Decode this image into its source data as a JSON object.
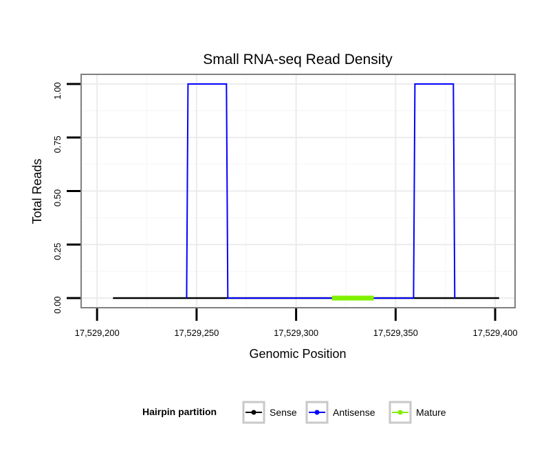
{
  "chart_data": {
    "type": "line",
    "title": "Small RNA-seq Read Density",
    "xlabel": "Genomic Position",
    "ylabel": "Total Reads",
    "xlim": [
      17529192,
      17529410
    ],
    "ylim": [
      -0.045,
      1.045
    ],
    "x_ticks": [
      17529200,
      17529250,
      17529300,
      17529350,
      17529400
    ],
    "x_tick_labels": [
      "17,529,200",
      "17,529,250",
      "17,529,300",
      "17,529,350",
      "17,529,400"
    ],
    "y_ticks": [
      0,
      0.25,
      0.5,
      0.75,
      1.0
    ],
    "y_tick_labels": [
      "0.00",
      "0.25",
      "0.50",
      "0.75",
      "1.00"
    ],
    "grid": true,
    "legend": {
      "title": "Hairpin partition",
      "position": "bottom",
      "entries": [
        {
          "label": "Sense",
          "color": "#000000"
        },
        {
          "label": "Antisense",
          "color": "#0000ff"
        },
        {
          "label": "Mature",
          "color": "#80f000"
        }
      ]
    },
    "series": [
      {
        "name": "Sense",
        "color": "#000000",
        "x": [
          17529208,
          17529402
        ],
        "y": [
          0,
          0
        ]
      },
      {
        "name": "Antisense",
        "color": "#0000ff",
        "x": [
          17529245,
          17529245.7,
          17529265,
          17529265.7,
          17529359,
          17529359.7,
          17529379,
          17529379.7
        ],
        "y": [
          0,
          1,
          1,
          0,
          0,
          1,
          1,
          0
        ]
      },
      {
        "name": "Mature",
        "color": "#80f000",
        "x": [
          17529318,
          17529339
        ],
        "y": [
          0,
          0
        ]
      }
    ]
  }
}
